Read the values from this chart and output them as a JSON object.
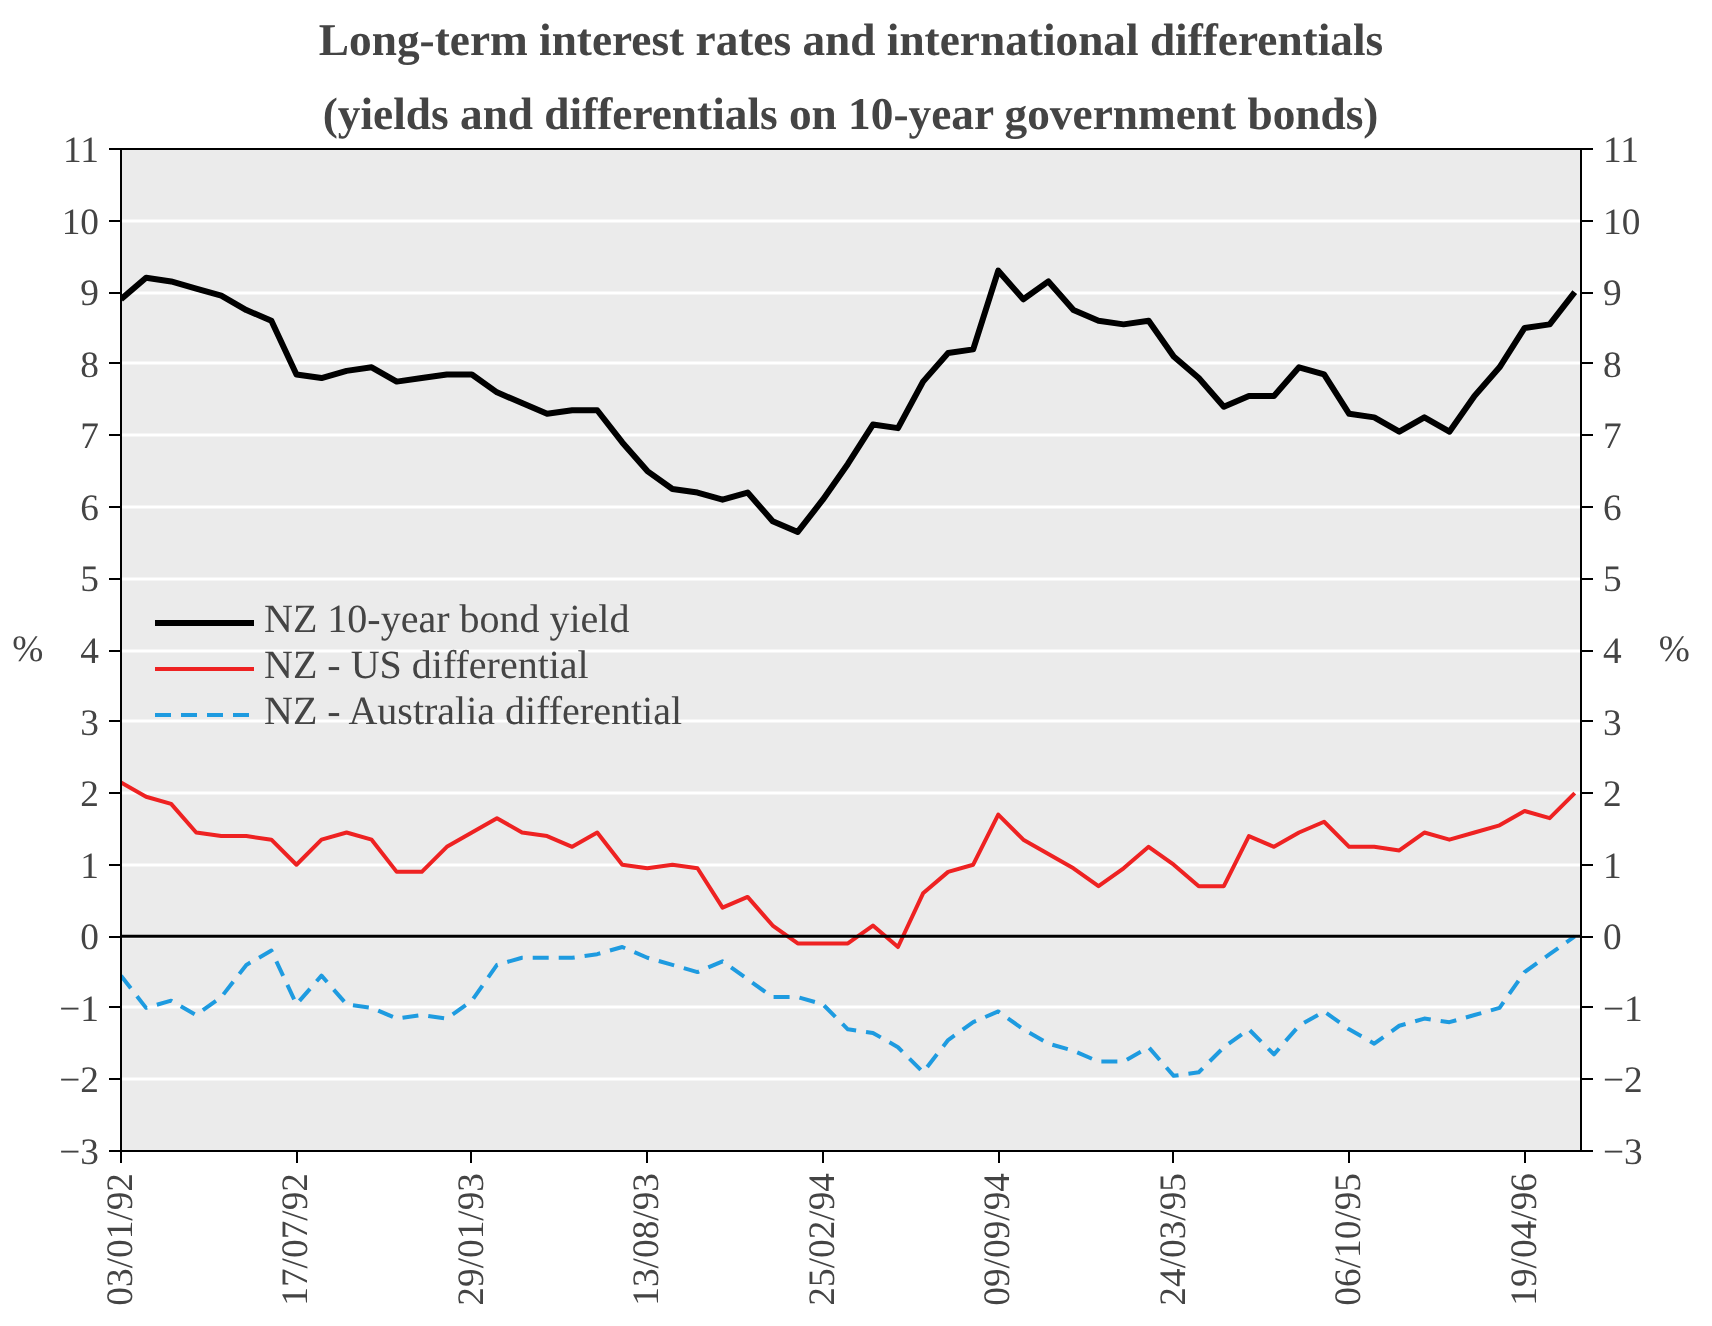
{
  "chart_data": {
    "type": "line",
    "title": "Long-term interest rates and international differentials",
    "subtitle": "(yields and differentials on 10-year government bonds)",
    "ylabel": "%",
    "y2label": "%",
    "x": [
      "1992-01-03",
      "1992-01-31",
      "1992-02-28",
      "1992-03-27",
      "1992-04-24",
      "1992-05-22",
      "1992-06-19",
      "1992-07-17",
      "1992-08-14",
      "1992-09-11",
      "1992-10-09",
      "1992-11-06",
      "1992-12-04",
      "1993-01-01",
      "1993-01-29",
      "1993-02-26",
      "1993-03-26",
      "1993-04-23",
      "1993-05-21",
      "1993-06-18",
      "1993-07-16",
      "1993-08-13",
      "1993-09-10",
      "1993-10-08",
      "1993-11-05",
      "1993-12-03",
      "1993-12-31",
      "1994-01-28",
      "1994-02-25",
      "1994-03-25",
      "1994-04-22",
      "1994-05-20",
      "1994-06-17",
      "1994-07-15",
      "1994-08-12",
      "1994-09-09",
      "1994-10-07",
      "1994-11-04",
      "1994-12-02",
      "1994-12-30",
      "1995-01-27",
      "1995-02-24",
      "1995-03-24",
      "1995-04-21",
      "1995-05-19",
      "1995-06-16",
      "1995-07-14",
      "1995-08-11",
      "1995-09-08",
      "1995-10-06",
      "1995-11-03",
      "1995-12-01",
      "1995-12-29",
      "1996-01-26",
      "1996-02-23",
      "1996-03-22",
      "1996-04-19",
      "1996-05-17",
      "1996-06-14"
    ],
    "series": [
      {
        "name": "NZ 10-year bond yield",
        "color": "#000000",
        "line_style": "solid",
        "values": [
          8.9,
          9.2,
          9.15,
          9.05,
          8.95,
          8.75,
          8.6,
          7.85,
          7.8,
          7.9,
          7.95,
          7.75,
          7.8,
          7.85,
          7.85,
          7.6,
          7.45,
          7.3,
          7.35,
          7.35,
          6.9,
          6.5,
          6.25,
          6.2,
          6.1,
          6.2,
          5.8,
          5.65,
          6.1,
          6.6,
          7.15,
          7.1,
          7.75,
          8.15,
          8.2,
          9.3,
          8.9,
          9.15,
          8.75,
          8.6,
          8.55,
          8.6,
          8.1,
          7.8,
          7.4,
          7.55,
          7.55,
          7.95,
          7.85,
          7.3,
          7.25,
          7.05,
          7.25,
          7.05,
          7.55,
          7.95,
          8.5,
          8.55,
          9.0
        ]
      },
      {
        "name": "NZ - US differential",
        "color": "#ee2222",
        "line_style": "solid",
        "values": [
          2.15,
          1.95,
          1.85,
          1.45,
          1.4,
          1.4,
          1.35,
          1.0,
          1.35,
          1.45,
          1.35,
          0.9,
          0.9,
          1.25,
          1.45,
          1.65,
          1.45,
          1.4,
          1.25,
          1.45,
          1.0,
          0.95,
          1.0,
          0.95,
          0.4,
          0.55,
          0.15,
          -0.1,
          -0.1,
          -0.1,
          0.15,
          -0.15,
          0.6,
          0.9,
          1.0,
          1.7,
          1.35,
          1.15,
          0.95,
          0.7,
          0.95,
          1.25,
          1.0,
          0.7,
          0.7,
          1.4,
          1.25,
          1.45,
          1.6,
          1.25,
          1.25,
          1.2,
          1.45,
          1.35,
          1.45,
          1.55,
          1.75,
          1.65,
          2.0
        ]
      },
      {
        "name": "NZ - Australia differential",
        "color": "#1e9be0",
        "line_style": "dashed",
        "values": [
          -0.55,
          -1.0,
          -0.9,
          -1.1,
          -0.85,
          -0.4,
          -0.2,
          -0.95,
          -0.55,
          -0.95,
          -1.0,
          -1.15,
          -1.1,
          -1.15,
          -0.9,
          -0.4,
          -0.3,
          -0.3,
          -0.3,
          -0.25,
          -0.15,
          -0.3,
          -0.4,
          -0.5,
          -0.35,
          -0.6,
          -0.85,
          -0.85,
          -0.95,
          -1.3,
          -1.35,
          -1.55,
          -1.9,
          -1.45,
          -1.2,
          -1.05,
          -1.3,
          -1.5,
          -1.6,
          -1.75,
          -1.75,
          -1.55,
          -1.95,
          -1.9,
          -1.55,
          -1.3,
          -1.65,
          -1.25,
          -1.05,
          -1.3,
          -1.5,
          -1.25,
          -1.15,
          -1.2,
          -1.1,
          -1.0,
          -0.5,
          -0.25,
          0.0
        ]
      }
    ],
    "xlim": [
      "1992-01-03",
      "1996-06-21"
    ],
    "xticks": [
      {
        "value": "1992-01-03",
        "label": "03/01/92"
      },
      {
        "value": "1992-07-17",
        "label": "17/07/92"
      },
      {
        "value": "1993-01-29",
        "label": "29/01/93"
      },
      {
        "value": "1993-08-13",
        "label": "13/08/93"
      },
      {
        "value": "1994-02-25",
        "label": "25/02/94"
      },
      {
        "value": "1994-09-09",
        "label": "09/09/94"
      },
      {
        "value": "1995-03-24",
        "label": "24/03/95"
      },
      {
        "value": "1995-10-06",
        "label": "06/10/95"
      },
      {
        "value": "1996-04-19",
        "label": "19/04/96"
      }
    ],
    "ylim": [
      -3,
      11
    ],
    "yticks": [
      -3,
      -2,
      -1,
      0,
      1,
      2,
      3,
      4,
      5,
      6,
      7,
      8,
      9,
      10,
      11
    ],
    "y2lim": [
      -3,
      11
    ],
    "y2ticks": [
      -3,
      -2,
      -1,
      0,
      1,
      2,
      3,
      4,
      5,
      6,
      7,
      8,
      9,
      10,
      11
    ],
    "ref_lines": [
      {
        "axis": "y",
        "value": 0,
        "color": "#000000"
      }
    ],
    "grid": "y",
    "legend": "left",
    "marker": "none"
  }
}
